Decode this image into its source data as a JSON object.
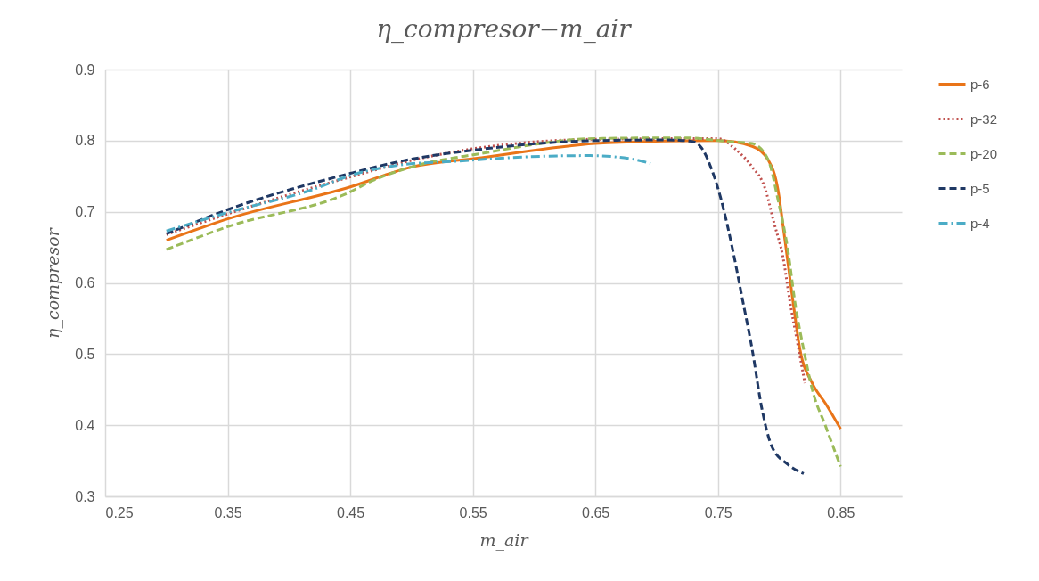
{
  "chart_data": {
    "type": "line",
    "title": "η_compresor−m_air",
    "xlabel": "m_air",
    "ylabel": "η_compresor",
    "xlim": [
      0.25,
      0.9
    ],
    "xticks": [
      0.25,
      0.35,
      0.45,
      0.55,
      0.65,
      0.75,
      0.85
    ],
    "ylim": [
      0.3,
      0.9
    ],
    "yticks": [
      0.3,
      0.4,
      0.5,
      0.6,
      0.7,
      0.8,
      0.9
    ],
    "grid": true,
    "legend": "right",
    "marker": "none",
    "series": [
      {
        "name": "p-6",
        "color": "#e97418",
        "line_style": "solid",
        "x": [
          0.3,
          0.35,
          0.45,
          0.5,
          0.557,
          0.65,
          0.692,
          0.75,
          0.778,
          0.791,
          0.799,
          0.804,
          0.811,
          0.817,
          0.827,
          0.838,
          0.85
        ],
        "values": [
          0.66,
          0.69,
          0.735,
          0.763,
          0.776,
          0.796,
          0.799,
          0.8,
          0.792,
          0.773,
          0.731,
          0.669,
          0.577,
          0.506,
          0.459,
          0.43,
          0.395
        ]
      },
      {
        "name": "p-32",
        "color": "#c0504d",
        "line_style": "dotted",
        "x": [
          0.3,
          0.35,
          0.45,
          0.502,
          0.65,
          0.75,
          0.765,
          0.778,
          0.788,
          0.796,
          0.803,
          0.809,
          0.815,
          0.821
        ],
        "values": [
          0.668,
          0.697,
          0.749,
          0.773,
          0.802,
          0.803,
          0.787,
          0.763,
          0.735,
          0.683,
          0.637,
          0.571,
          0.515,
          0.459
        ]
      },
      {
        "name": "p-20",
        "color": "#9bbb59",
        "line_style": "dashed",
        "x": [
          0.3,
          0.35,
          0.45,
          0.466,
          0.5,
          0.557,
          0.65,
          0.723,
          0.757,
          0.778,
          0.791,
          0.799,
          0.807,
          0.813,
          0.82,
          0.827,
          0.838,
          0.85
        ],
        "values": [
          0.647,
          0.679,
          0.728,
          0.742,
          0.763,
          0.782,
          0.803,
          0.804,
          0.799,
          0.796,
          0.773,
          0.717,
          0.647,
          0.571,
          0.506,
          0.45,
          0.398,
          0.342
        ]
      },
      {
        "name": "p-5",
        "color": "#1f3864",
        "line_style": "dashed",
        "x": [
          0.3,
          0.35,
          0.45,
          0.491,
          0.557,
          0.65,
          0.708,
          0.729,
          0.737,
          0.745,
          0.752,
          0.762,
          0.77,
          0.778,
          0.786,
          0.794,
          0.807,
          0.82
        ],
        "values": [
          0.669,
          0.703,
          0.754,
          0.771,
          0.788,
          0.8,
          0.801,
          0.799,
          0.789,
          0.759,
          0.721,
          0.647,
          0.577,
          0.506,
          0.422,
          0.37,
          0.345,
          0.332
        ]
      },
      {
        "name": "p-4",
        "color": "#4bacc6",
        "line_style": "dashdot",
        "x": [
          0.3,
          0.35,
          0.419,
          0.452,
          0.491,
          0.536,
          0.59,
          0.645,
          0.677,
          0.695
        ],
        "values": [
          0.673,
          0.699,
          0.731,
          0.752,
          0.766,
          0.771,
          0.777,
          0.779,
          0.775,
          0.768
        ]
      }
    ]
  }
}
